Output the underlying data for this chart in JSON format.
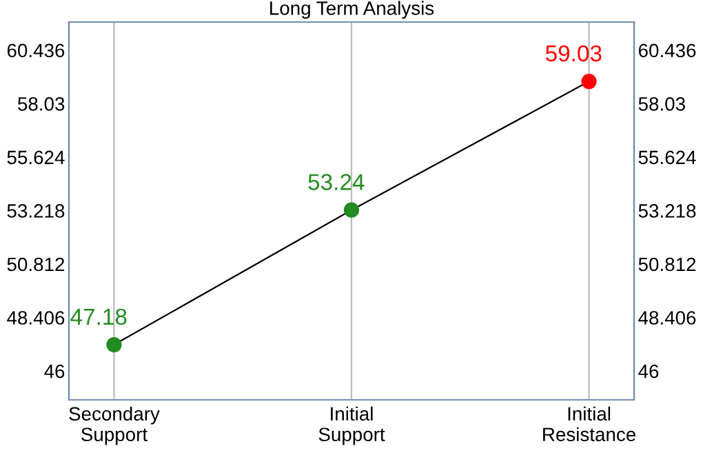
{
  "chart_data": {
    "type": "line",
    "title": "Long Term Analysis",
    "categories": [
      "Secondary\nSupport",
      "Initial\nSupport",
      "Initial\nResistance"
    ],
    "series": [
      {
        "color": "#000000",
        "values": [
          47.18,
          53.24,
          59.03
        ],
        "colors": [
          "#228b22",
          "#228b22",
          "#ff0000"
        ]
      }
    ],
    "ylim": [
      44.7,
      61.7
    ],
    "yticks": [
      46,
      48.406,
      50.812,
      53.218,
      55.624,
      58.03,
      60.436
    ],
    "y2lim": [
      44.7,
      61.7
    ],
    "y2ticks": [
      46,
      48.406,
      50.812,
      53.218,
      55.624,
      58.03,
      60.436
    ],
    "grid": "x",
    "marker": "circle",
    "data_labels": true
  }
}
